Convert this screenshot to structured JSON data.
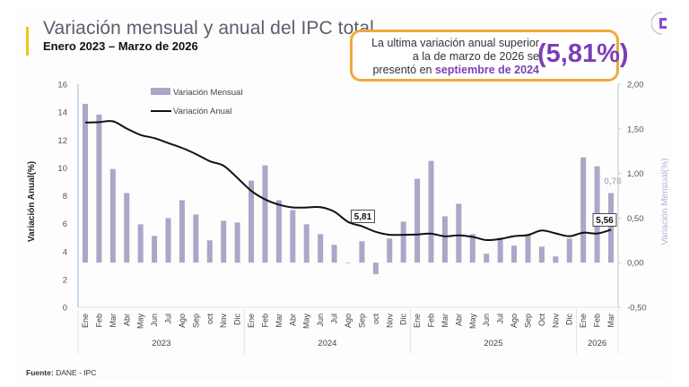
{
  "header": {
    "title": "Variación mensual y anual del IPC total",
    "subtitle": "Enero 2023 – Marzo de 2026"
  },
  "callout": {
    "line1": "La ultima variación anual superior",
    "line2": "a la de marzo de 2026 se",
    "line3_prefix": "presentó en ",
    "line3_highlight": "septiembre de 2024",
    "big_value": "(5,81%)"
  },
  "source": {
    "label": "Fuente:",
    "text": " DANE - IPC"
  },
  "logo": {
    "icon": "dane-logo-icon"
  },
  "colors": {
    "bar": "#aea5c8",
    "line": "#111111",
    "accent": "#f0c419",
    "callout_border": "#f0a93a",
    "highlight": "#7b3fb5"
  },
  "chart_data": {
    "type": "bar+line",
    "title": "Variación mensual y anual del IPC total",
    "subtitle": "Enero 2023 – Marzo de 2026",
    "categories": [
      "Ene",
      "Feb",
      "Mar",
      "Abr",
      "May",
      "Jun",
      "Jul",
      "Ago",
      "Sep",
      "oct",
      "Nov",
      "Dic",
      "Ene",
      "Feb",
      "Mar",
      "Abr",
      "May",
      "Jun",
      "Jul",
      "Ago",
      "Sep",
      "oct",
      "Nov",
      "Dic",
      "Ene",
      "Feb",
      "Mar",
      "Abr",
      "May",
      "Jun",
      "Jul",
      "Ago",
      "Sep",
      "Oct",
      "Nov",
      "Dic",
      "Ene",
      "Feb",
      "Mar"
    ],
    "year_groups": [
      {
        "label": "2023",
        "count": 12
      },
      {
        "label": "2024",
        "count": 12
      },
      {
        "label": "2025",
        "count": 12
      },
      {
        "label": "2026",
        "count": 3
      }
    ],
    "series": [
      {
        "name": "Variación Mensual",
        "type": "bar",
        "axis": "right",
        "values": [
          1.78,
          1.66,
          1.05,
          0.78,
          0.43,
          0.3,
          0.5,
          0.7,
          0.54,
          0.25,
          0.47,
          0.45,
          0.92,
          1.09,
          0.7,
          0.59,
          0.43,
          0.32,
          0.2,
          0.0,
          0.24,
          -0.13,
          0.27,
          0.46,
          0.94,
          1.14,
          0.52,
          0.66,
          0.32,
          0.1,
          0.28,
          0.19,
          0.32,
          0.18,
          0.07,
          0.27,
          1.18,
          1.08,
          0.78
        ]
      },
      {
        "name": "Variación Anual",
        "type": "line",
        "axis": "left",
        "values": [
          13.25,
          13.28,
          13.34,
          12.82,
          12.36,
          12.13,
          11.78,
          11.43,
          10.99,
          10.48,
          10.15,
          9.28,
          8.35,
          7.74,
          7.36,
          7.16,
          7.16,
          7.18,
          6.86,
          6.12,
          5.81,
          5.41,
          5.2,
          5.2,
          5.22,
          5.28,
          5.09,
          5.16,
          5.05,
          4.82,
          4.9,
          5.1,
          5.18,
          5.51,
          5.3,
          5.1,
          5.35,
          5.29,
          5.56
        ]
      }
    ],
    "y_left": {
      "label": "Variación Anual(%)",
      "range": [
        0,
        16
      ],
      "ticks": [
        "0",
        "2",
        "4",
        "6",
        "8",
        "10",
        "12",
        "14",
        "16"
      ]
    },
    "y_right": {
      "label": "Variación Mensual(%)",
      "range": [
        -0.5,
        2.0
      ],
      "ticks": [
        "-0,50",
        "0,00",
        "0,50",
        "1,00",
        "1,50",
        "2,00"
      ]
    },
    "annotations": [
      {
        "series": "Variación Anual",
        "index": 20,
        "text": "5,81"
      },
      {
        "series": "Variación Anual",
        "index": 38,
        "text": "5,56"
      },
      {
        "series": "Variación Mensual",
        "index": 38,
        "text": "0,78"
      }
    ],
    "legend": {
      "position": "top-left",
      "entries": [
        "Variación Mensual",
        "Variación Anual"
      ]
    },
    "grid": false
  }
}
